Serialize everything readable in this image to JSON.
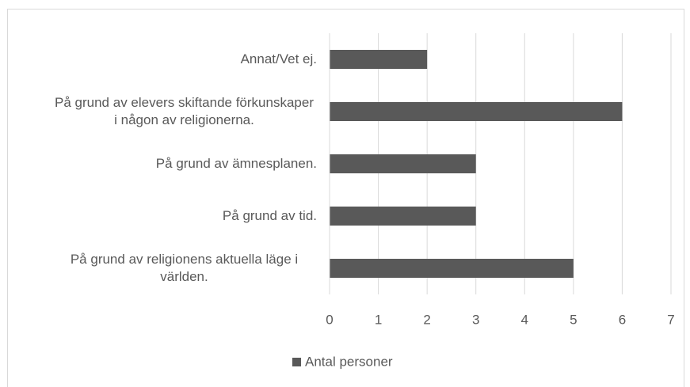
{
  "chart_data": {
    "type": "bar",
    "orientation": "horizontal",
    "categories": [
      "Annat/Vet ej.",
      "På grund av elevers skiftande förkunskaper i någon av religionerna.",
      "På grund av ämnesplanen.",
      "På grund av tid.",
      "På grund av religionens aktuella läge i världen."
    ],
    "series": [
      {
        "name": "Antal personer",
        "color": "#595959",
        "values": [
          2,
          6,
          3,
          3,
          5
        ]
      }
    ],
    "xlim": [
      0,
      7
    ],
    "xticks": [
      0,
      1,
      2,
      3,
      4,
      5,
      6,
      7
    ],
    "grid": true,
    "legend": "bottom"
  }
}
